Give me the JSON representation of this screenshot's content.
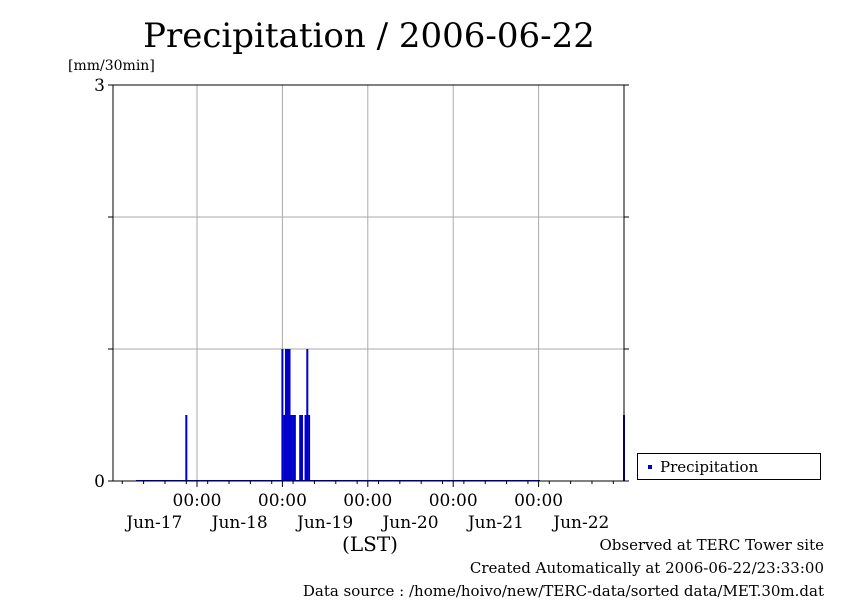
{
  "chart_data": {
    "type": "bar",
    "title": "Precipitation / 2006-06-22",
    "ylabel": "[mm/30min]",
    "xlabel": "(LST)",
    "ylim": [
      0,
      3
    ],
    "y_tick_labels": [
      "0",
      "3"
    ],
    "y_gridlines": [
      0,
      1,
      2,
      3
    ],
    "grid": true,
    "x_range_hours": [
      -27,
      30
    ],
    "x_ticks": [
      {
        "label": "00:00",
        "date": "Jun-17",
        "hour": 0
      },
      {
        "label": "00:00",
        "date": "Jun-18",
        "hour": 0
      },
      {
        "label": "00:00",
        "date": "Jun-19",
        "hour": 0
      },
      {
        "label": "00:00",
        "date": "Jun-20",
        "hour": 0
      },
      {
        "label": "00:00",
        "date": "Jun-21",
        "hour": 0
      }
    ],
    "x_end_label": "Jun-22",
    "series": [
      {
        "name": "Precipitation",
        "color": "#0000cc",
        "points": [
          {
            "t": "2006-06-16 21:00",
            "value": 0.5
          },
          {
            "t": "2006-06-18 00:00",
            "value": 1.0
          },
          {
            "t": "2006-06-18 00:30",
            "value": 0.5
          },
          {
            "t": "2006-06-18 01:00",
            "value": 1.0
          },
          {
            "t": "2006-06-18 01:30",
            "value": 1.0
          },
          {
            "t": "2006-06-18 02:00",
            "value": 1.0
          },
          {
            "t": "2006-06-18 02:30",
            "value": 0.5
          },
          {
            "t": "2006-06-18 03:00",
            "value": 0.5
          },
          {
            "t": "2006-06-18 03:30",
            "value": 0.5
          },
          {
            "t": "2006-06-18 05:00",
            "value": 0.5
          },
          {
            "t": "2006-06-18 05:30",
            "value": 0.5
          },
          {
            "t": "2006-06-18 06:30",
            "value": 0.5
          },
          {
            "t": "2006-06-18 07:00",
            "value": 1.0
          },
          {
            "t": "2006-06-18 07:30",
            "value": 0.5
          },
          {
            "t": "2006-06-22 00:00",
            "value": 0.5
          }
        ]
      }
    ],
    "legend": {
      "position": "right",
      "entries": [
        "Precipitation"
      ]
    }
  },
  "footer": {
    "line1": "Observed at TERC Tower site",
    "line2": "Created Automatically at 2006-06-22/23:33:00",
    "line3": "Data source : /home/hoivo/new/TERC-data/sorted  data/MET.30m.dat"
  }
}
